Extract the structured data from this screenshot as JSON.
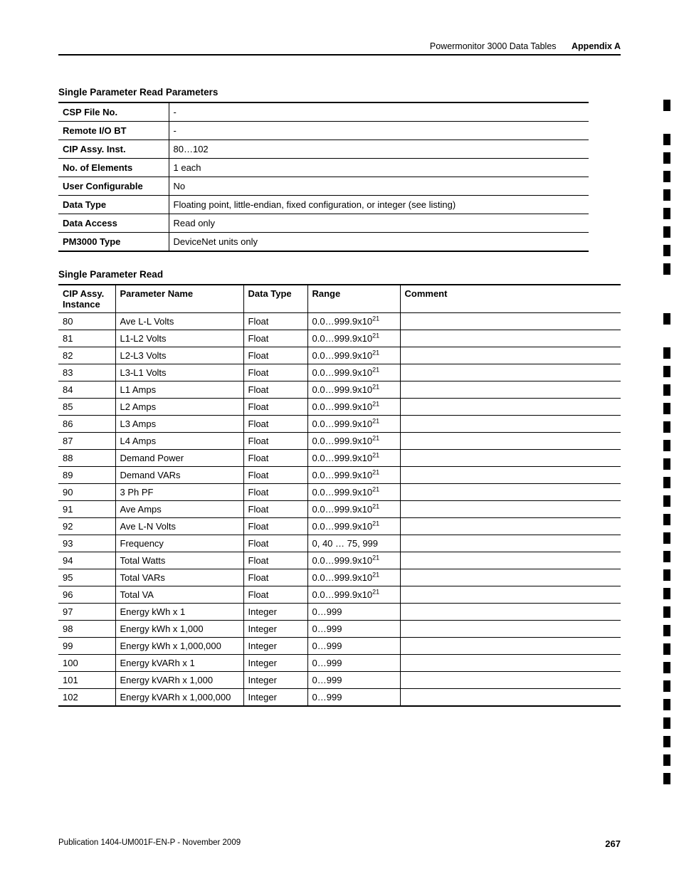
{
  "header": {
    "section": "Powermonitor 3000 Data Tables",
    "appendix": "Appendix A"
  },
  "params_table": {
    "title": "Single Parameter Read Parameters",
    "rows": [
      {
        "label": "CSP File No.",
        "value": "-"
      },
      {
        "label": "Remote I/O BT",
        "value": "-"
      },
      {
        "label": "CIP Assy. Inst.",
        "value": "80…102"
      },
      {
        "label": "No. of Elements",
        "value": "1 each"
      },
      {
        "label": "User Configurable",
        "value": "No"
      },
      {
        "label": "Data Type",
        "value": "Floating point, little-endian, fixed configuration, or integer (see listing)"
      },
      {
        "label": "Data Access",
        "value": "Read only"
      },
      {
        "label": "PM3000 Type",
        "value": "DeviceNet units only"
      }
    ]
  },
  "read_table": {
    "title": "Single Parameter Read",
    "columns": [
      "CIP Assy. Instance",
      "Parameter Name",
      "Data Type",
      "Range",
      "Comment"
    ],
    "range_sci": "0.0…999.9x10",
    "range_exp": "21",
    "rows": [
      {
        "inst": "80",
        "name": "Ave L-L Volts",
        "type": "Float",
        "range_kind": "sci",
        "comment": ""
      },
      {
        "inst": "81",
        "name": "L1-L2 Volts",
        "type": "Float",
        "range_kind": "sci",
        "comment": ""
      },
      {
        "inst": "82",
        "name": "L2-L3 Volts",
        "type": "Float",
        "range_kind": "sci",
        "comment": ""
      },
      {
        "inst": "83",
        "name": "L3-L1 Volts",
        "type": "Float",
        "range_kind": "sci",
        "comment": ""
      },
      {
        "inst": "84",
        "name": "L1 Amps",
        "type": "Float",
        "range_kind": "sci",
        "comment": ""
      },
      {
        "inst": "85",
        "name": "L2 Amps",
        "type": "Float",
        "range_kind": "sci",
        "comment": ""
      },
      {
        "inst": "86",
        "name": "L3 Amps",
        "type": "Float",
        "range_kind": "sci",
        "comment": ""
      },
      {
        "inst": "87",
        "name": "L4 Amps",
        "type": "Float",
        "range_kind": "sci",
        "comment": ""
      },
      {
        "inst": "88",
        "name": "Demand Power",
        "type": "Float",
        "range_kind": "sci",
        "comment": ""
      },
      {
        "inst": "89",
        "name": "Demand VARs",
        "type": "Float",
        "range_kind": "sci",
        "comment": ""
      },
      {
        "inst": "90",
        "name": "3 Ph PF",
        "type": "Float",
        "range_kind": "sci",
        "comment": ""
      },
      {
        "inst": "91",
        "name": "Ave Amps",
        "type": "Float",
        "range_kind": "sci",
        "comment": ""
      },
      {
        "inst": "92",
        "name": "Ave L-N Volts",
        "type": "Float",
        "range_kind": "sci",
        "comment": ""
      },
      {
        "inst": "93",
        "name": "Frequency",
        "type": "Float",
        "range_kind": "plain",
        "range_plain": "0, 40 … 75, 999",
        "comment": ""
      },
      {
        "inst": "94",
        "name": "Total Watts",
        "type": "Float",
        "range_kind": "sci",
        "comment": ""
      },
      {
        "inst": "95",
        "name": "Total VARs",
        "type": "Float",
        "range_kind": "sci",
        "comment": ""
      },
      {
        "inst": "96",
        "name": "Total VA",
        "type": "Float",
        "range_kind": "sci",
        "comment": ""
      },
      {
        "inst": "97",
        "name": "Energy kWh x 1",
        "type": "Integer",
        "range_kind": "plain",
        "range_plain": "0…999",
        "comment": ""
      },
      {
        "inst": "98",
        "name": "Energy kWh x 1,000",
        "type": "Integer",
        "range_kind": "plain",
        "range_plain": "0…999",
        "comment": ""
      },
      {
        "inst": "99",
        "name": "Energy kWh x 1,000,000",
        "type": "Integer",
        "range_kind": "plain",
        "range_plain": "0…999",
        "comment": ""
      },
      {
        "inst": "100",
        "name": "Energy kVARh x 1",
        "type": "Integer",
        "range_kind": "plain",
        "range_plain": "0…999",
        "comment": ""
      },
      {
        "inst": "101",
        "name": "Energy kVARh x 1,000",
        "type": "Integer",
        "range_kind": "plain",
        "range_plain": "0…999",
        "comment": ""
      },
      {
        "inst": "102",
        "name": "Energy kVARh x 1,000,000",
        "type": "Integer",
        "range_kind": "plain",
        "range_plain": "0…999",
        "comment": ""
      }
    ]
  },
  "footer": {
    "pub": "Publication 1404-UM001F-EN-P - November 2009",
    "page": "267"
  }
}
